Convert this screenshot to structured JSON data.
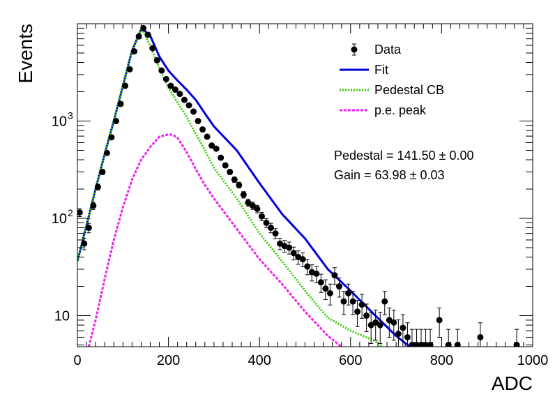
{
  "chart_data": {
    "type": "scatter",
    "xlabel": "ADC",
    "ylabel": "Events",
    "xlim": [
      0,
      1000
    ],
    "ylim": [
      4.8,
      10000
    ],
    "yscale": "log",
    "grid": false,
    "legend_position": "top-right",
    "x_ticks": [
      {
        "value": 0,
        "label": "0"
      },
      {
        "value": 200,
        "label": "200"
      },
      {
        "value": 400,
        "label": "400"
      },
      {
        "value": 600,
        "label": "600"
      },
      {
        "value": 800,
        "label": "800"
      },
      {
        "value": 1000,
        "label": "1000"
      }
    ],
    "y_ticks": [
      {
        "value": 10,
        "label": "10"
      },
      {
        "value": 100,
        "label": "10",
        "exp": "2"
      },
      {
        "value": 1000,
        "label": "10",
        "exp": "3"
      }
    ],
    "legend": [
      {
        "label": "Data",
        "color": "#000000",
        "style": "marker"
      },
      {
        "label": "Fit",
        "color": "#0000dd",
        "style": "solid"
      },
      {
        "label": "Pedestal CB",
        "color": "#33cc00",
        "style": "dotted"
      },
      {
        "label": "p.e. peak",
        "color": "#ee22ee",
        "style": "dashed"
      }
    ],
    "annotations": [
      {
        "text": "Pedestal = 141.50 ± 0.00"
      },
      {
        "text": "Gain = 63.98 ± 0.03"
      }
    ],
    "series": [
      {
        "name": "Data",
        "type": "points_with_errors",
        "color": "#000000",
        "x": [
          5,
          15,
          25,
          35,
          45,
          55,
          65,
          75,
          85,
          95,
          105,
          115,
          125,
          135,
          145,
          155,
          165,
          175,
          185,
          195,
          205,
          215,
          225,
          235,
          245,
          255,
          265,
          275,
          285,
          295,
          305,
          315,
          325,
          335,
          345,
          355,
          365,
          375,
          385,
          395,
          405,
          415,
          425,
          435,
          445,
          455,
          465,
          475,
          485,
          495,
          505,
          515,
          525,
          535,
          545,
          555,
          565,
          575,
          585,
          595,
          605,
          615,
          625,
          635,
          645,
          655,
          665,
          675,
          685,
          695,
          705,
          715,
          725,
          735,
          745,
          755,
          765,
          775,
          795,
          815,
          835,
          885,
          965
        ],
        "y": [
          115,
          55,
          80,
          135,
          210,
          300,
          470,
          680,
          1000,
          1500,
          2300,
          3400,
          5200,
          7400,
          9000,
          7700,
          5600,
          4200,
          3300,
          2700,
          2300,
          2100,
          1900,
          1650,
          1450,
          1250,
          1000,
          820,
          690,
          560,
          520,
          420,
          350,
          300,
          250,
          220,
          175,
          145,
          135,
          125,
          105,
          90,
          80,
          70,
          55,
          52,
          50,
          44,
          40,
          38,
          32,
          28,
          27,
          22,
          19,
          17,
          26,
          20,
          14,
          17,
          14,
          11,
          13,
          10,
          8,
          8.5,
          8,
          14,
          9,
          8.5,
          6.5,
          7.5,
          6,
          5,
          5,
          5,
          5,
          5,
          9,
          5,
          5,
          6,
          5
        ]
      },
      {
        "name": "Fit",
        "type": "line",
        "color": "#0000dd",
        "x": [
          0,
          20,
          40,
          60,
          80,
          100,
          120,
          141,
          160,
          180,
          200,
          220,
          240,
          260,
          280,
          300,
          350,
          400,
          450,
          500,
          550,
          600,
          650,
          700,
          730
        ],
        "y": [
          36,
          85,
          200,
          460,
          1000,
          2300,
          5300,
          9000,
          7500,
          4600,
          3300,
          2600,
          2100,
          1650,
          1200,
          880,
          500,
          230,
          110,
          62,
          30,
          18,
          10.5,
          6.2,
          4.8
        ]
      },
      {
        "name": "Pedestal CB",
        "type": "line",
        "color": "#33cc00",
        "x": [
          0,
          20,
          40,
          60,
          80,
          100,
          120,
          141,
          160,
          180,
          200,
          220,
          240,
          260,
          280,
          300,
          350,
          400,
          450,
          500,
          550,
          600,
          650,
          670
        ],
        "y": [
          36,
          85,
          200,
          460,
          1000,
          2300,
          5300,
          9000,
          5900,
          3500,
          2200,
          1550,
          1100,
          740,
          500,
          330,
          160,
          70,
          36,
          18,
          9.5,
          7,
          5.6,
          4.8
        ]
      },
      {
        "name": "p.e. peak",
        "type": "line",
        "color": "#ee22ee",
        "x": [
          25,
          40,
          60,
          80,
          100,
          120,
          140,
          160,
          180,
          200,
          210,
          220,
          240,
          260,
          280,
          300,
          350,
          400,
          450,
          500,
          550,
          580
        ],
        "y": [
          4.8,
          9,
          24,
          60,
          130,
          250,
          400,
          540,
          690,
          730,
          720,
          670,
          480,
          320,
          220,
          160,
          78,
          38,
          21,
          11,
          6.2,
          4.8
        ]
      }
    ]
  }
}
